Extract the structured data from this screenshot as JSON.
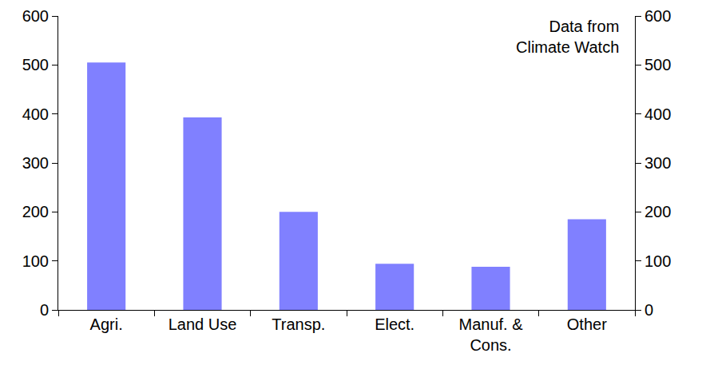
{
  "chart_data": {
    "type": "bar",
    "categories": [
      "Agri.",
      "Land Use",
      "Transp.",
      "Elect.",
      "Manuf. &\nCons.",
      "Other"
    ],
    "values": [
      505,
      393,
      200,
      94,
      88,
      185
    ],
    "color": "#8080ff",
    "ylim": [
      0,
      600
    ],
    "yticks": [
      0,
      100,
      200,
      300,
      400,
      500,
      600
    ],
    "y2lim": [
      0,
      600
    ],
    "y2ticks": [
      0,
      100,
      200,
      300,
      400,
      500,
      600
    ],
    "annotation": "Data from\nClimate Watch",
    "grid": false
  }
}
